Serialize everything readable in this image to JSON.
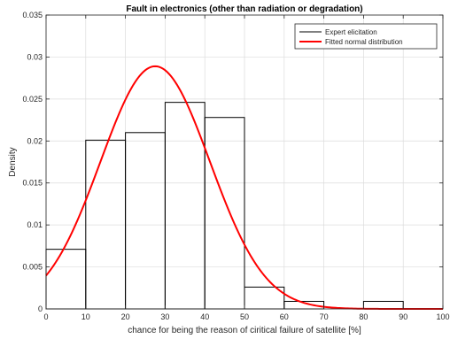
{
  "chart_data": {
    "type": "bar",
    "title": "Fault in electronics (other than radiation or degradation)",
    "xlabel": "chance for being the reason of ciritical failure of satellite [%]",
    "ylabel": "Density",
    "xlim": [
      0,
      100
    ],
    "ylim": [
      0,
      0.035
    ],
    "xticks": [
      0,
      10,
      20,
      30,
      40,
      50,
      60,
      70,
      80,
      90,
      100
    ],
    "yticks": [
      0,
      0.005,
      0.01,
      0.015,
      0.02,
      0.025,
      0.03,
      0.035
    ],
    "xtick_labels": [
      "0",
      "10",
      "20",
      "30",
      "40",
      "50",
      "60",
      "70",
      "80",
      "90",
      "100"
    ],
    "ytick_labels": [
      "0",
      "0.005",
      "0.01",
      "0.015",
      "0.02",
      "0.025",
      "0.03",
      "0.035"
    ],
    "grid": true,
    "legend_position": "top-right",
    "histogram": {
      "name": "Expert elicitation",
      "color": "#000000",
      "bins": [
        {
          "start": 0,
          "end": 10,
          "value": 0.0071
        },
        {
          "start": 10,
          "end": 20,
          "value": 0.0201
        },
        {
          "start": 20,
          "end": 30,
          "value": 0.021
        },
        {
          "start": 30,
          "end": 40,
          "value": 0.0246
        },
        {
          "start": 40,
          "end": 50,
          "value": 0.0228
        },
        {
          "start": 50,
          "end": 60,
          "value": 0.0026
        },
        {
          "start": 60,
          "end": 70,
          "value": 0.0009
        },
        {
          "start": 70,
          "end": 80,
          "value": 0.0
        },
        {
          "start": 80,
          "end": 90,
          "value": 0.0009
        },
        {
          "start": 90,
          "end": 100,
          "value": 0.0
        }
      ]
    },
    "normal_fit": {
      "name": "Fitted normal distribution",
      "color": "#ff0000",
      "mean": 27.5,
      "std": 13.8,
      "peak_density": 0.0289
    }
  }
}
